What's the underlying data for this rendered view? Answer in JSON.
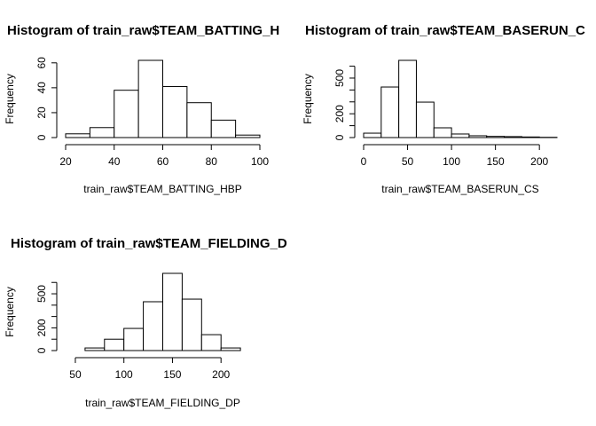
{
  "chart_data": [
    {
      "type": "histogram",
      "title": "Histogram of train_raw$TEAM_BATTING_H",
      "x_label": "train_raw$TEAM_BATTING_HBP",
      "y_label": "Frequency",
      "bins": [
        20,
        30,
        40,
        50,
        60,
        70,
        80,
        90,
        100
      ],
      "values": [
        3,
        8,
        38,
        62,
        41,
        28,
        14,
        2
      ],
      "xlim": [
        20,
        100
      ],
      "xticks": [
        20,
        40,
        60,
        80,
        100
      ],
      "ylim": [
        0,
        62
      ],
      "yticks": [
        0,
        20,
        40,
        60
      ],
      "color": "#ffffff"
    },
    {
      "type": "histogram",
      "title": "Histogram of train_raw$TEAM_BASERUN_C",
      "x_label": "train_raw$TEAM_BASERUN_CS",
      "y_label": "Frequency",
      "bins": [
        0,
        20,
        40,
        60,
        80,
        100,
        120,
        140,
        160,
        180,
        200,
        220
      ],
      "values": [
        37,
        425,
        649,
        298,
        82,
        30,
        15,
        10,
        8,
        5,
        2
      ],
      "xlim": [
        0,
        220
      ],
      "xticks": [
        0,
        50,
        100,
        150,
        200
      ],
      "ylim": [
        0,
        649
      ],
      "yticks": [
        0,
        {
          "value": 100,
          "label": null
        },
        200,
        {
          "value": 300,
          "label": null
        },
        {
          "value": 400,
          "label": null
        },
        500,
        {
          "value": 600,
          "label": null
        }
      ],
      "color": "#ffffff"
    },
    {
      "type": "histogram",
      "title": "Histogram of train_raw$TEAM_FIELDING_D",
      "x_label": "train_raw$TEAM_FIELDING_DP",
      "y_label": "Frequency",
      "bins": [
        60,
        80,
        100,
        120,
        140,
        160,
        180,
        200,
        220
      ],
      "values": [
        23,
        100,
        195,
        430,
        680,
        453,
        140,
        23
      ],
      "xlim": [
        40,
        240
      ],
      "xticks": [
        50,
        100,
        150,
        200
      ],
      "ylim": [
        0,
        680
      ],
      "yticks": [
        0,
        {
          "value": 100,
          "label": null
        },
        200,
        {
          "value": 300,
          "label": null
        },
        {
          "value": 400,
          "label": null
        },
        500,
        {
          "value": 600,
          "label": null
        }
      ],
      "color": "#ffffff"
    }
  ]
}
